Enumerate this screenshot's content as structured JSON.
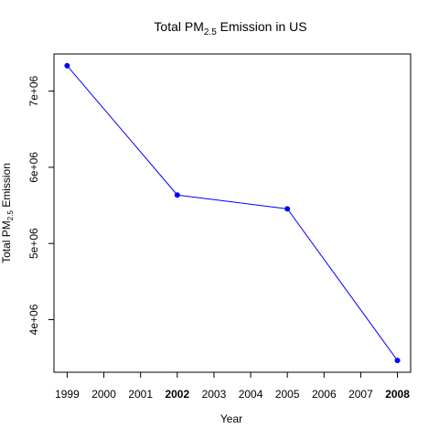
{
  "chart_data": {
    "type": "line",
    "title": {
      "prefix": "Total PM",
      "subscript": "2.5",
      "suffix": " Emission in US"
    },
    "xlabel": "Year",
    "ylabel": {
      "prefix": "Total PM",
      "subscript": "2.5",
      "suffix": " Emission"
    },
    "x": [
      1999,
      2002,
      2005,
      2008
    ],
    "y": [
      7332967,
      5635780,
      5454703,
      3464206
    ],
    "xticks": [
      1999,
      2000,
      2001,
      2002,
      2003,
      2004,
      2005,
      2006,
      2007,
      2008
    ],
    "xtick_labels": [
      "1999",
      "2000",
      "2001",
      "2002",
      "2003",
      "2004",
      "2005",
      "2006",
      "2007",
      "2008"
    ],
    "bold_xticks": [
      2002,
      2008
    ],
    "yticks": [
      4000000,
      5000000,
      6000000,
      7000000
    ],
    "ytick_labels": [
      "4e+06",
      "5e+06",
      "6e+06",
      "7e+06"
    ],
    "xlim": [
      1998.64,
      2008.36
    ],
    "ylim": [
      3309376,
      7487797
    ],
    "grid": false,
    "line_color": "#0000ff",
    "point_color": "#0000ff"
  }
}
